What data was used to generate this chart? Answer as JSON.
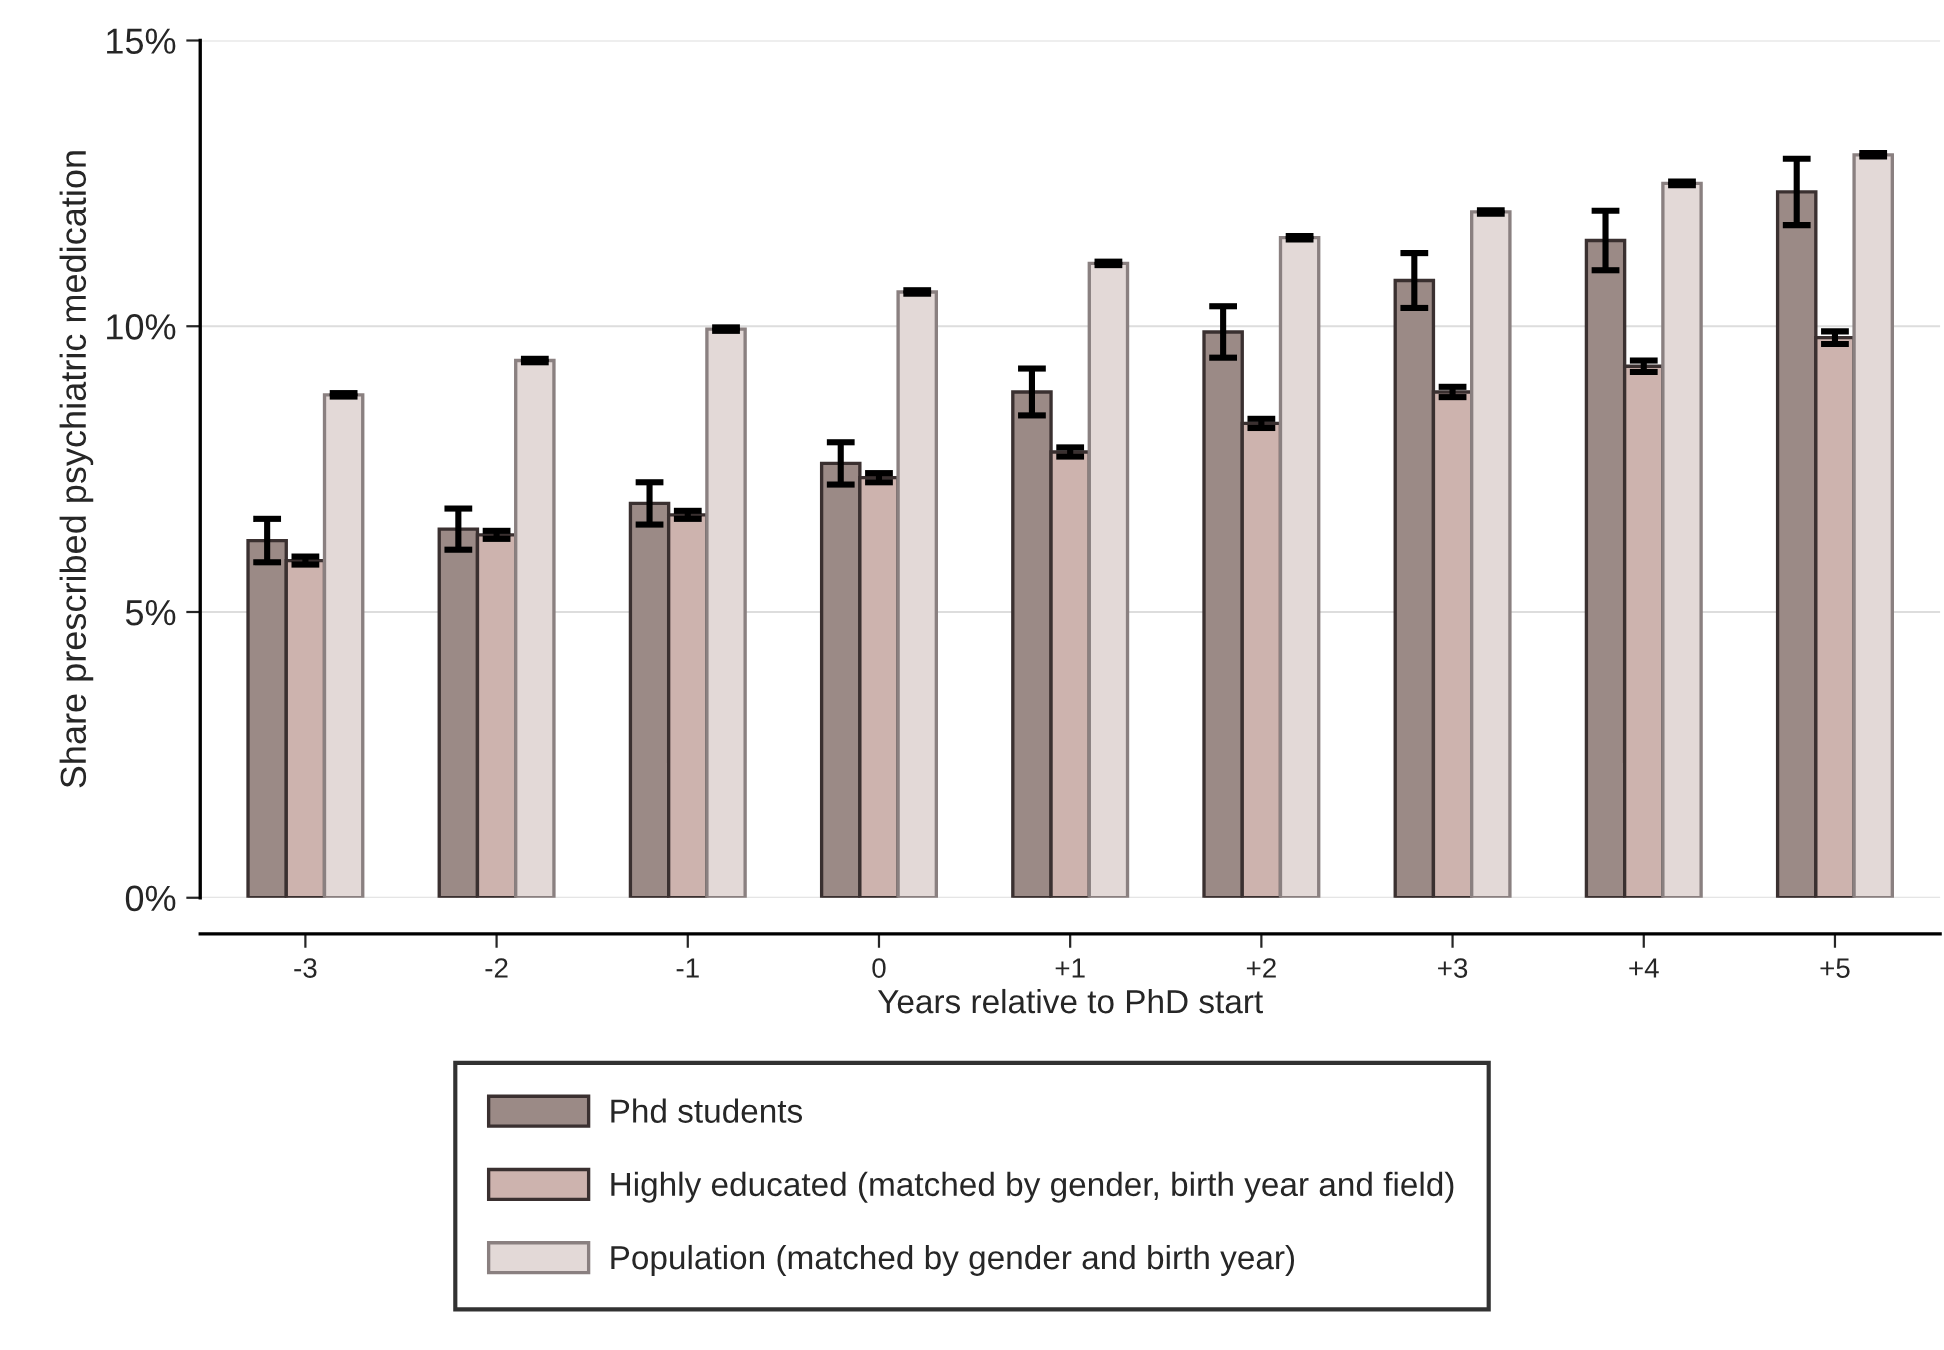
{
  "chart_data": {
    "type": "bar",
    "xlabel": "Years relative to PhD start",
    "ylabel": "Share prescribed psychiatric medication",
    "categories": [
      "-3",
      "-2",
      "-1",
      "0",
      "+1",
      "+2",
      "+3",
      "+4",
      "+5"
    ],
    "series": [
      {
        "name": "Phd students",
        "color": "#9b8a86",
        "values": [
          6.25,
          6.45,
          6.9,
          7.6,
          8.85,
          9.9,
          10.8,
          11.5,
          12.35
        ],
        "errors": [
          0.38,
          0.36,
          0.37,
          0.37,
          0.41,
          0.45,
          0.48,
          0.52,
          0.58
        ]
      },
      {
        "name": "Highly educated (matched by gender, birth year and field)",
        "color": "#cdb3ae",
        "values": [
          5.9,
          6.35,
          6.7,
          7.35,
          7.8,
          8.3,
          8.85,
          9.3,
          9.8
        ],
        "errors": [
          0.07,
          0.07,
          0.07,
          0.08,
          0.08,
          0.08,
          0.09,
          0.1,
          0.11
        ]
      },
      {
        "name": "Population (matched by gender and birth year)",
        "color": "#e3d9d7",
        "values": [
          8.8,
          9.4,
          9.95,
          10.6,
          11.1,
          11.55,
          12.0,
          12.5,
          13.0
        ],
        "errors": [
          0.03,
          0.03,
          0.03,
          0.03,
          0.03,
          0.03,
          0.03,
          0.03,
          0.03
        ]
      }
    ],
    "ylim": [
      0,
      15
    ],
    "yticks": [
      {
        "value": 0,
        "label": "0%"
      },
      {
        "value": 5,
        "label": "5%"
      },
      {
        "value": 10,
        "label": "10%"
      },
      {
        "value": 15,
        "label": "15%"
      }
    ],
    "grid": "y",
    "legend": "bottom"
  }
}
